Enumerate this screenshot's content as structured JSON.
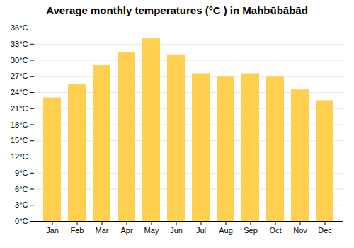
{
  "chart_data": {
    "type": "bar",
    "title": "Average monthly temperatures (°C ) in Mahbūbābād",
    "categories": [
      "Jan",
      "Feb",
      "Mar",
      "Apr",
      "May",
      "Jun",
      "Jul",
      "Aug",
      "Sep",
      "Oct",
      "Nov",
      "Dec"
    ],
    "values": [
      23.0,
      25.5,
      29.0,
      31.5,
      34.0,
      31.0,
      27.5,
      27.0,
      27.5,
      27.0,
      24.5,
      22.5
    ],
    "color": "#FFD050",
    "ylim": [
      0,
      36
    ],
    "yticks": [
      {
        "value": 0,
        "label": "0°C"
      },
      {
        "value": 3,
        "label": "3°C"
      },
      {
        "value": 6,
        "label": "6°C"
      },
      {
        "value": 9,
        "label": "9°C"
      },
      {
        "value": 12,
        "label": "12°C"
      },
      {
        "value": 15,
        "label": "15°C"
      },
      {
        "value": 18,
        "label": "18°C"
      },
      {
        "value": 21,
        "label": "21°C"
      },
      {
        "value": 24,
        "label": "24°C"
      },
      {
        "value": 27,
        "label": "27°C"
      },
      {
        "value": 30,
        "label": "30°C"
      },
      {
        "value": 33,
        "label": "33°C"
      },
      {
        "value": 36,
        "label": "36°C"
      }
    ],
    "grid": true
  }
}
